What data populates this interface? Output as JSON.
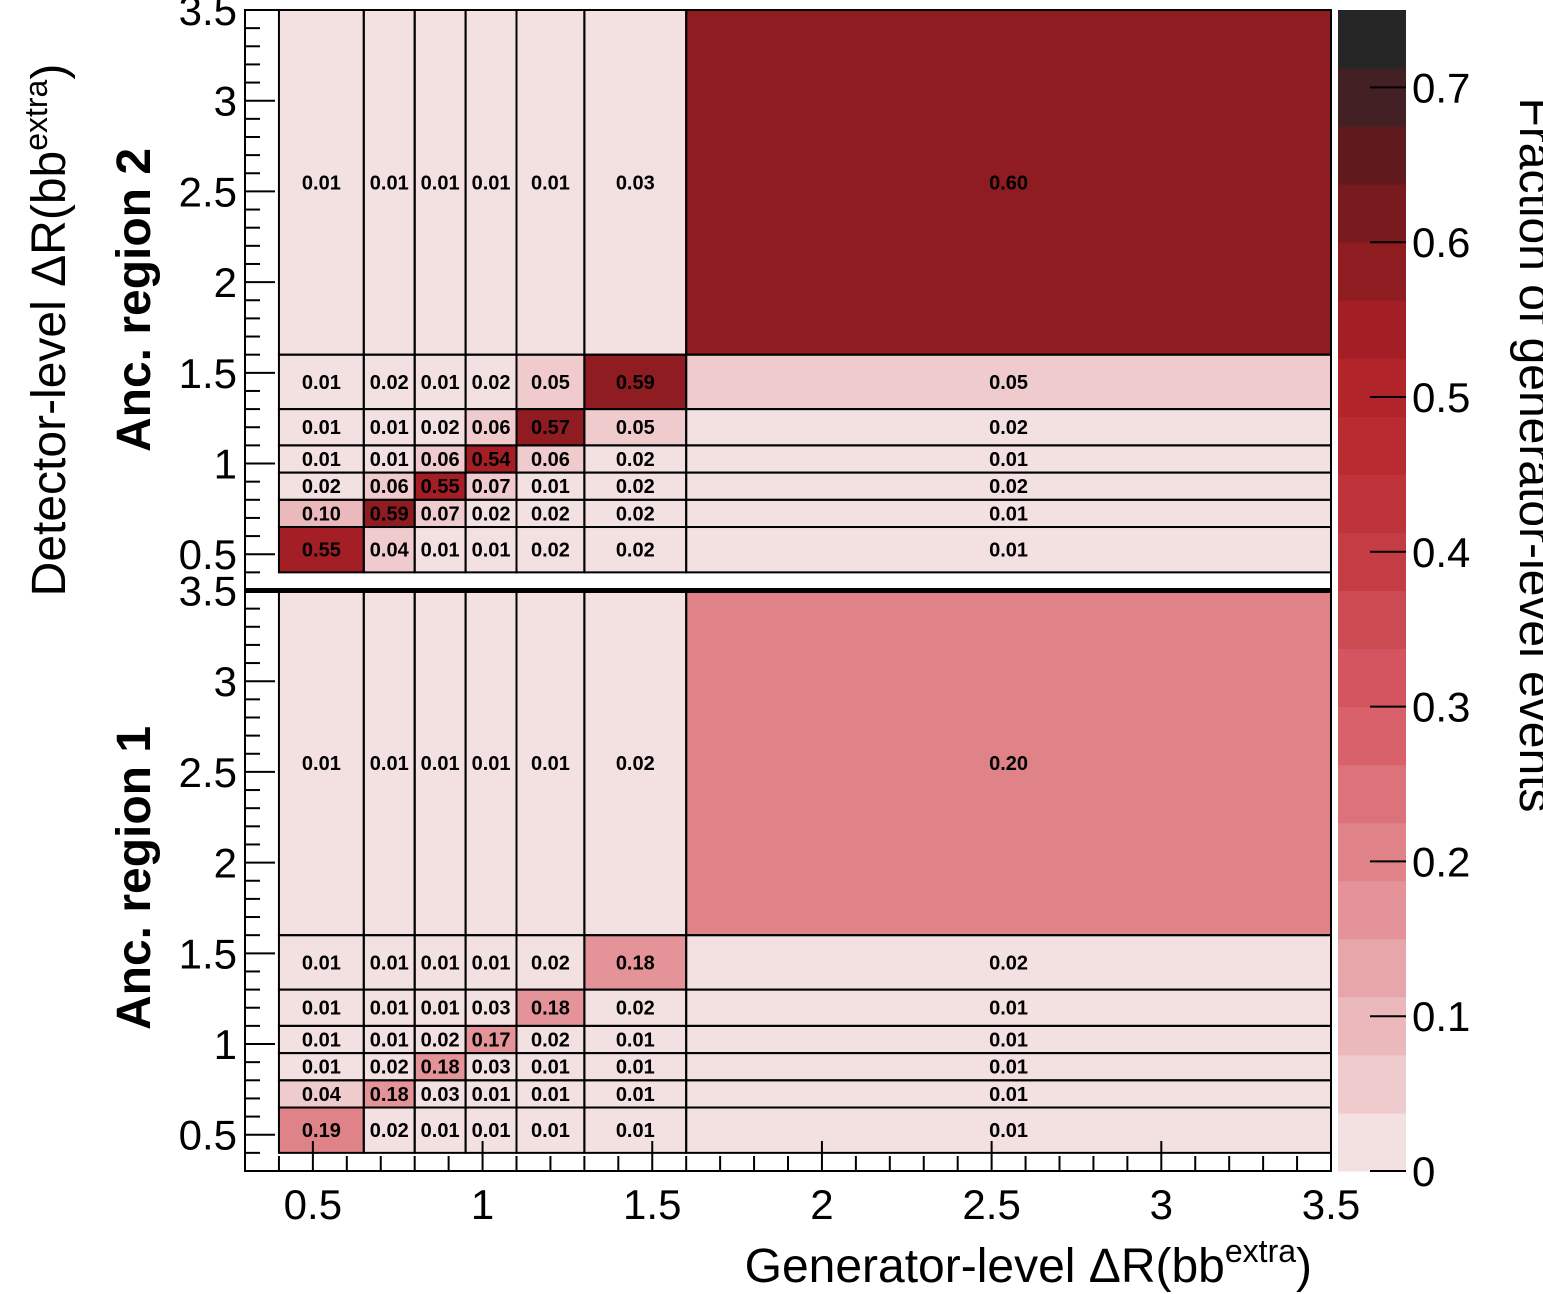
{
  "chart_data": {
    "type": "heatmap",
    "title": "",
    "xlabel": "Generator-level ΔR(bb",
    "xlabel_sup": "extra",
    "xlabel_close": ")",
    "ylabel": "Detector-level ΔR(bb",
    "ylabel_sup": "extra",
    "ylabel_close": ")",
    "zlabel": "Fraction of generator-level events",
    "x_bin_edges": [
      0.4,
      0.65,
      0.8,
      0.95,
      1.1,
      1.3,
      1.6,
      4.0
    ],
    "y_bin_edges": [
      0.4,
      0.65,
      0.8,
      0.95,
      1.1,
      1.3,
      1.6,
      4.0
    ],
    "xlim": [
      0.3,
      3.5
    ],
    "x_ticks": [
      0.5,
      1,
      1.5,
      2,
      2.5,
      3,
      3.5
    ],
    "x_tick_labels": [
      "0.5",
      "1",
      "1.5",
      "2",
      "2.5",
      "3",
      "3.5"
    ],
    "y_ticks": [
      0.5,
      1,
      1.5,
      2,
      2.5,
      3,
      3.5
    ],
    "y_tick_labels": [
      "0.5",
      "1",
      "1.5",
      "2",
      "2.5",
      "3",
      "3.5"
    ],
    "zlim": [
      0,
      0.75
    ],
    "z_ticks": [
      0,
      0.1,
      0.2,
      0.3,
      0.4,
      0.5,
      0.6,
      0.7
    ],
    "z_tick_labels": [
      "0",
      "0.1",
      "0.2",
      "0.3",
      "0.4",
      "0.5",
      "0.6",
      "0.7"
    ],
    "panels": [
      {
        "name": "Anc. region 1",
        "label": "Anc. region 1",
        "cells": [
          [
            "0.19",
            "0.02",
            "0.01",
            "0.01",
            "0.01",
            "0.01",
            "0.01"
          ],
          [
            "0.04",
            "0.18",
            "0.03",
            "0.01",
            "0.01",
            "0.01",
            "0.01"
          ],
          [
            "0.01",
            "0.02",
            "0.18",
            "0.03",
            "0.01",
            "0.01",
            "0.01"
          ],
          [
            "0.01",
            "0.01",
            "0.02",
            "0.17",
            "0.02",
            "0.01",
            "0.01"
          ],
          [
            "0.01",
            "0.01",
            "0.01",
            "0.03",
            "0.18",
            "0.02",
            "0.01"
          ],
          [
            "0.01",
            "0.01",
            "0.01",
            "0.01",
            "0.02",
            "0.18",
            "0.02"
          ],
          [
            "0.01",
            "0.01",
            "0.01",
            "0.01",
            "0.01",
            "0.02",
            "0.20"
          ]
        ]
      },
      {
        "name": "Anc. region 2",
        "label": "Anc. region 2",
        "cells": [
          [
            "0.55",
            "0.04",
            "0.01",
            "0.01",
            "0.02",
            "0.02",
            "0.01"
          ],
          [
            "0.10",
            "0.59",
            "0.07",
            "0.02",
            "0.02",
            "0.02",
            "0.01"
          ],
          [
            "0.02",
            "0.06",
            "0.55",
            "0.07",
            "0.01",
            "0.02",
            "0.02"
          ],
          [
            "0.01",
            "0.01",
            "0.06",
            "0.54",
            "0.06",
            "0.02",
            "0.01"
          ],
          [
            "0.01",
            "0.01",
            "0.02",
            "0.06",
            "0.57",
            "0.05",
            "0.02"
          ],
          [
            "0.01",
            "0.02",
            "0.01",
            "0.02",
            "0.05",
            "0.59",
            "0.05"
          ],
          [
            "0.01",
            "0.01",
            "0.01",
            "0.01",
            "0.01",
            "0.03",
            "0.60"
          ]
        ]
      }
    ],
    "palette": [
      "#f3e0e1",
      "#efcbcd",
      "#ebb9bb",
      "#e7a6aa",
      "#e49499",
      "#e08389",
      "#dc727a",
      "#d8616c",
      "#d45560",
      "#cc4a52",
      "#c53d44",
      "#bf343a",
      "#b92b31",
      "#b0242a",
      "#a31f25",
      "#8f1c21",
      "#791a1e",
      "#611a1c",
      "#432023",
      "#262626"
    ]
  }
}
